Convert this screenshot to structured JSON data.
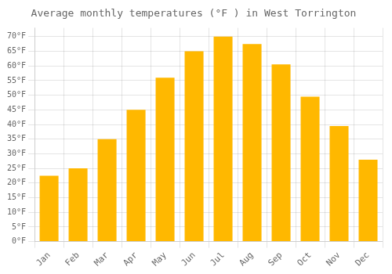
{
  "chart_data": {
    "type": "bar",
    "title": "Average monthly temperatures (°F ) in West Torrington",
    "categories": [
      "Jan",
      "Feb",
      "Mar",
      "Apr",
      "May",
      "Jun",
      "Jul",
      "Aug",
      "Sep",
      "Oct",
      "Nov",
      "Dec"
    ],
    "values": [
      22.5,
      25.0,
      35.0,
      45.0,
      56.0,
      65.0,
      70.0,
      67.5,
      60.5,
      49.5,
      39.5,
      28.0
    ],
    "color": "#FFB800",
    "ylim": [
      0,
      73
    ],
    "yticks": [
      {
        "value": 0,
        "label": "0°F"
      },
      {
        "value": 5,
        "label": "5°F"
      },
      {
        "value": 10,
        "label": "10°F"
      },
      {
        "value": 15,
        "label": "15°F"
      },
      {
        "value": 20,
        "label": "20°F"
      },
      {
        "value": 25,
        "label": "25°F"
      },
      {
        "value": 30,
        "label": "30°F"
      },
      {
        "value": 35,
        "label": "35°F"
      },
      {
        "value": 40,
        "label": "40°F"
      },
      {
        "value": 45,
        "label": "45°F"
      },
      {
        "value": 50,
        "label": "50°F"
      },
      {
        "value": 55,
        "label": "55°F"
      },
      {
        "value": 60,
        "label": "60°F"
      },
      {
        "value": 65,
        "label": "65°F"
      },
      {
        "value": 70,
        "label": "70°F"
      }
    ],
    "grid": true
  }
}
